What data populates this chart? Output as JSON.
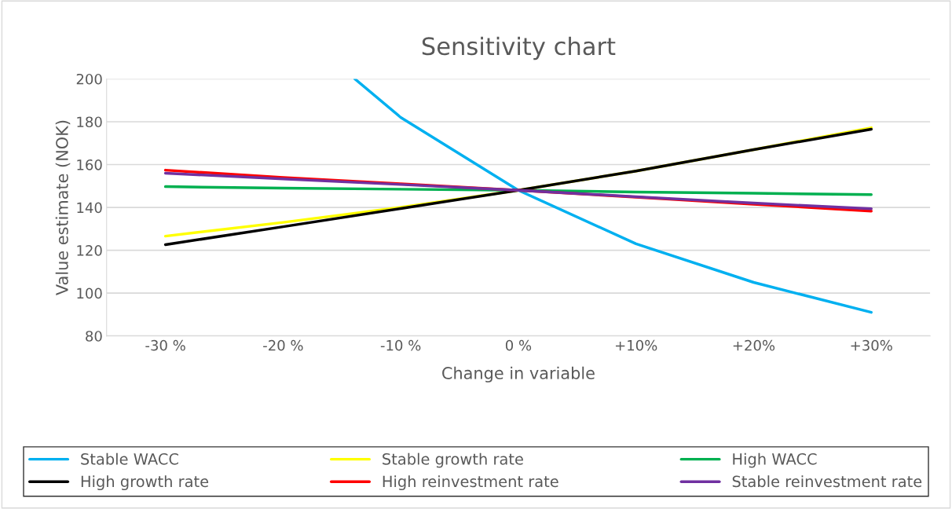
{
  "chart_data": {
    "type": "line",
    "title": "Sensitivity chart",
    "xlabel": "Change in variable",
    "ylabel": "Value estimate (NOK)",
    "x": [
      -30,
      -20,
      -10,
      0,
      10,
      20,
      30
    ],
    "xlim": [
      -35,
      35
    ],
    "xticks": [
      {
        "value": -30,
        "label": "-30 %"
      },
      {
        "value": -20,
        "label": "-20 %"
      },
      {
        "value": -10,
        "label": "-10 %"
      },
      {
        "value": 0,
        "label": "0 %"
      },
      {
        "value": 10,
        "label": "+10%"
      },
      {
        "value": 20,
        "label": "+20%"
      },
      {
        "value": 30,
        "label": "+30%"
      }
    ],
    "ylim": [
      80,
      200
    ],
    "yticks": [
      80,
      100,
      120,
      140,
      160,
      180,
      200
    ],
    "grid": "y",
    "legend": "bottom",
    "marker": "none",
    "line_style": "solid",
    "series": [
      {
        "name": "Stable WACC",
        "color": "#00b0f0",
        "x": [
          -13.9,
          -10,
          0,
          10,
          20,
          30
        ],
        "values": [
          200,
          182,
          148,
          123,
          105,
          91
        ]
      },
      {
        "name": "Stable growth rate",
        "color": "#ffff00",
        "values": [
          126.6,
          133,
          140,
          148,
          157,
          167,
          177.2
        ]
      },
      {
        "name": "High WACC",
        "color": "#00b050",
        "values": [
          149.7,
          149,
          148.5,
          148,
          147.2,
          146.6,
          146
        ]
      },
      {
        "name": "High growth rate",
        "color": "#000000",
        "values": [
          122.6,
          131,
          139.5,
          148,
          157,
          167,
          176.5
        ]
      },
      {
        "name": "High reinvestment rate",
        "color": "#ff0000",
        "values": [
          157.4,
          154,
          151,
          148,
          144.8,
          141.5,
          138.3
        ]
      },
      {
        "name": "Stable reinvestment rate",
        "color": "#7030a0",
        "values": [
          156,
          153.3,
          150.7,
          148,
          145,
          142,
          139.4
        ]
      }
    ]
  }
}
